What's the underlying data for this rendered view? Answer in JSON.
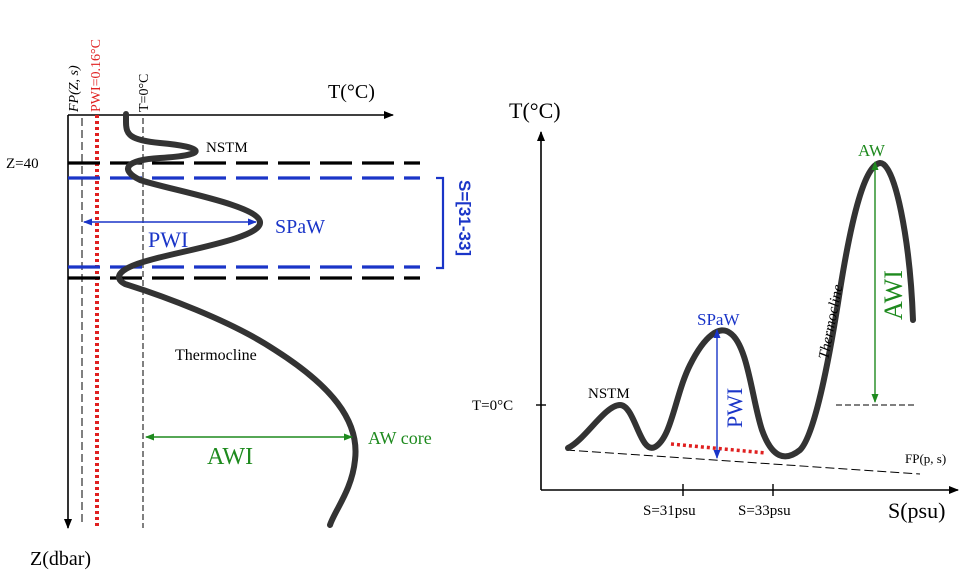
{
  "left": {
    "t_axis_label": "T(°C)",
    "z_axis_label": "Z(dbar)",
    "fp_label": "FP(Z, s)",
    "pwi_label": "PWI=0.16°C",
    "t0_label": "T=0°C",
    "z40_label": "Z=40",
    "nstm_label": "NSTM",
    "spaw_label": "SPaW",
    "pwi_arrow_label": "PWI",
    "salinity_band_label": "S=[31-33]",
    "thermocline_label": "Thermocline",
    "awi_label": "AWI",
    "aw_core_label": "AW core"
  },
  "right": {
    "t_axis_label": "T(°C)",
    "s_axis_label": "S(psu)",
    "t0_label": "T=0°C",
    "nstm_label": "NSTM",
    "spaw_label": "SPaW",
    "pwi_label": "PWI",
    "aw_label": "AW",
    "awi_label": "AWI",
    "thermocline_label": "Thermocline",
    "fp_label": "FP(p, s)",
    "s31_label": "S=31psu",
    "s33_label": "S=33psu"
  },
  "colors": {
    "profile": "#333333",
    "pwi_red": "#e02020",
    "spaw_blue": "#1a35c8",
    "awi_green": "#1e8a1e",
    "axis": "#000000"
  }
}
